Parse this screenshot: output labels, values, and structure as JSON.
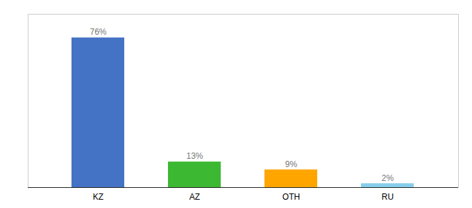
{
  "chart_data": {
    "type": "bar",
    "categories": [
      "KZ",
      "AZ",
      "OTH",
      "RU"
    ],
    "values": [
      76,
      13,
      9,
      2
    ],
    "value_labels": [
      "76%",
      "13%",
      "9%",
      "2%"
    ],
    "colors": [
      "#4472C4",
      "#3CB832",
      "#FFA500",
      "#87CEEB"
    ],
    "ylim": [
      0,
      88
    ],
    "data_labels": true,
    "tick_labels": "x",
    "grid": false
  }
}
